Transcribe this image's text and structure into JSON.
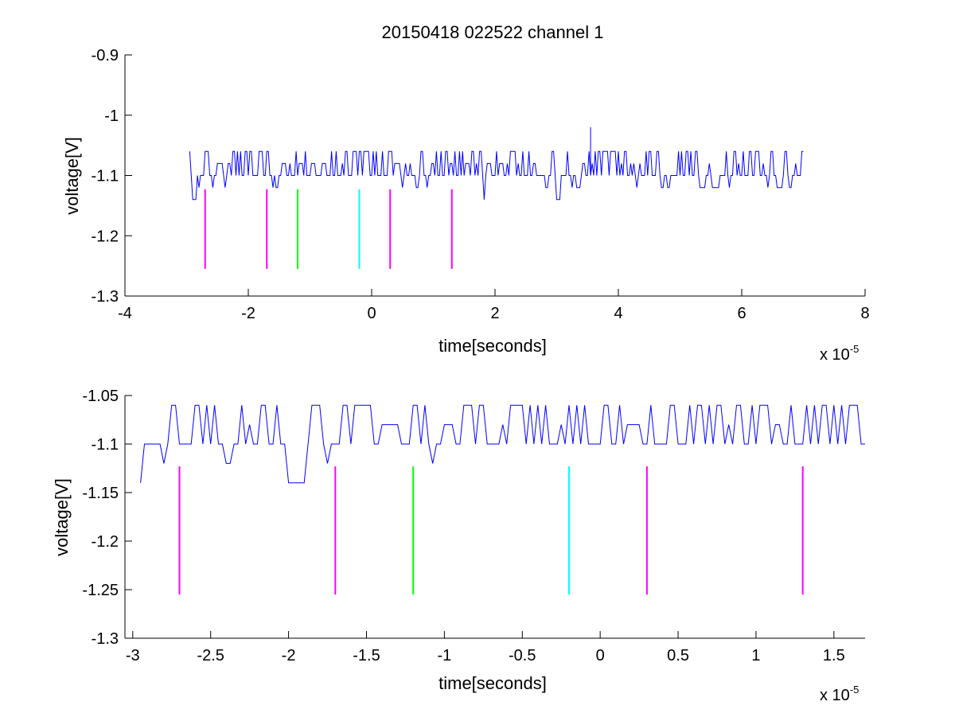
{
  "figure_title": "20150418 022522 channel 1",
  "chart_data": [
    {
      "type": "line",
      "title": "20150418 022522 channel 1",
      "xlabel": "time[seconds]",
      "ylabel": "voltage[V]",
      "x_multiplier_base": "x 10",
      "x_multiplier_exp": "-5",
      "xlim": [
        -4,
        8
      ],
      "ylim": [
        -1.3,
        -0.9
      ],
      "xticks": [
        -4,
        -2,
        0,
        2,
        4,
        6,
        8
      ],
      "xtick_labels": [
        "-4",
        "-2",
        "0",
        "2",
        "4",
        "6",
        "8"
      ],
      "yticks": [
        -1.3,
        -1.2,
        -1.1,
        -1,
        -0.9
      ],
      "ytick_labels": [
        "-1.3",
        "-1.2",
        "-1.1",
        "-1",
        "-0.9"
      ],
      "grid": false,
      "series": [
        {
          "color": "#0000ff",
          "x_range": [
            -2.95,
            7.0
          ],
          "levels": [
            -1.06,
            -1.08,
            -1.1,
            -1.12,
            -1.14
          ],
          "spike": {
            "x": 3.55,
            "y": -1.02
          }
        }
      ],
      "markers": [
        {
          "x": -2.7,
          "y_top": -1.123,
          "y_bottom": -1.255,
          "color": "#ff00ff"
        },
        {
          "x": -1.7,
          "y_top": -1.123,
          "y_bottom": -1.255,
          "color": "#ff00ff"
        },
        {
          "x": -1.2,
          "y_top": -1.123,
          "y_bottom": -1.255,
          "color": "#00ff00"
        },
        {
          "x": -0.2,
          "y_top": -1.123,
          "y_bottom": -1.255,
          "color": "#00ffff"
        },
        {
          "x": 0.3,
          "y_top": -1.123,
          "y_bottom": -1.255,
          "color": "#ff00ff"
        },
        {
          "x": 1.3,
          "y_top": -1.123,
          "y_bottom": -1.255,
          "color": "#ff00ff"
        }
      ]
    },
    {
      "type": "line",
      "title": "",
      "xlabel": "time[seconds]",
      "ylabel": "voltage[V]",
      "x_multiplier_base": "x 10",
      "x_multiplier_exp": "-5",
      "xlim": [
        -3.05,
        1.7
      ],
      "ylim": [
        -1.3,
        -1.05
      ],
      "xticks": [
        -3,
        -2.5,
        -2,
        -1.5,
        -1,
        -0.5,
        0,
        0.5,
        1,
        1.5
      ],
      "xtick_labels": [
        "-3",
        "-2.5",
        "-2",
        "-1.5",
        "-1",
        "-0.5",
        "0",
        "0.5",
        "1",
        "1.5"
      ],
      "yticks": [
        -1.3,
        -1.25,
        -1.2,
        -1.15,
        -1.1,
        -1.05
      ],
      "ytick_labels": [
        "-1.3",
        "-1.25",
        "-1.2",
        "-1.15",
        "-1.1",
        "-1.05"
      ],
      "grid": false,
      "series": [
        {
          "color": "#0000ff",
          "x_range": [
            -2.95,
            1.7
          ],
          "levels": [
            -1.06,
            -1.08,
            -1.1,
            -1.12,
            -1.14
          ]
        }
      ],
      "markers": [
        {
          "x": -2.7,
          "y_top": -1.123,
          "y_bottom": -1.255,
          "color": "#ff00ff"
        },
        {
          "x": -1.7,
          "y_top": -1.123,
          "y_bottom": -1.255,
          "color": "#ff00ff"
        },
        {
          "x": -1.2,
          "y_top": -1.123,
          "y_bottom": -1.255,
          "color": "#00ff00"
        },
        {
          "x": -0.2,
          "y_top": -1.123,
          "y_bottom": -1.255,
          "color": "#00ffff"
        },
        {
          "x": 0.3,
          "y_top": -1.123,
          "y_bottom": -1.255,
          "color": "#ff00ff"
        },
        {
          "x": 1.3,
          "y_top": -1.123,
          "y_bottom": -1.255,
          "color": "#ff00ff"
        }
      ]
    }
  ]
}
